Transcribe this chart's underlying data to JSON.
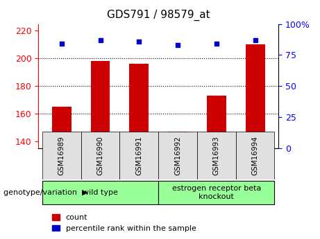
{
  "title": "GDS791 / 98579_at",
  "categories": [
    "GSM16989",
    "GSM16990",
    "GSM16991",
    "GSM16992",
    "GSM16993",
    "GSM16994"
  ],
  "bar_values": [
    165,
    198,
    196,
    147,
    173,
    210
  ],
  "scatter_values": [
    84,
    87,
    86,
    83,
    84,
    87
  ],
  "ylim_left": [
    135,
    225
  ],
  "ylim_right": [
    0,
    100
  ],
  "yticks_left": [
    140,
    160,
    180,
    200,
    220
  ],
  "yticks_right": [
    0,
    25,
    50,
    75,
    100
  ],
  "ytick_labels_right": [
    "0",
    "25",
    "50",
    "75",
    "100%"
  ],
  "bar_color": "#cc0000",
  "scatter_color": "#0000cc",
  "grid_lines": [
    160,
    180,
    200
  ],
  "groups": [
    {
      "label": "wild type",
      "indices": [
        0,
        1,
        2
      ],
      "color": "#99ff99"
    },
    {
      "label": "estrogen receptor beta\nknockout",
      "indices": [
        3,
        4,
        5
      ],
      "color": "#99ff99"
    }
  ],
  "group_label": "genotype/variation",
  "legend_items": [
    {
      "color": "#cc0000",
      "label": "count"
    },
    {
      "color": "#0000cc",
      "label": "percentile rank within the sample"
    }
  ],
  "bar_bottom": 140,
  "bar_width": 0.5
}
